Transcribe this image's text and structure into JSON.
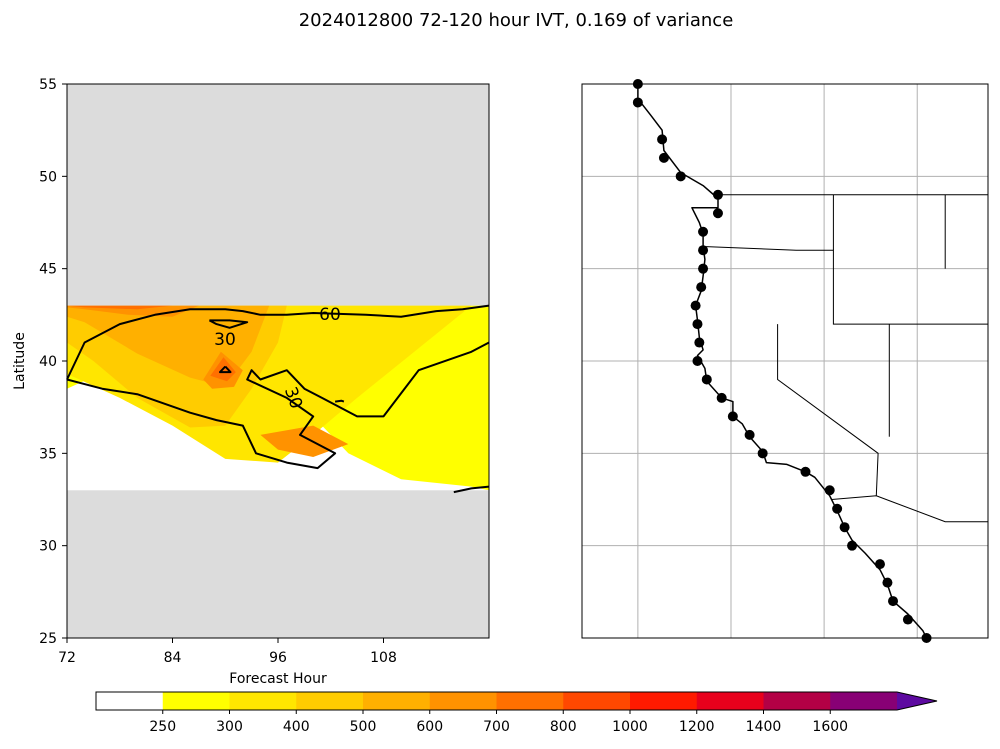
{
  "chart_data": {
    "title": "2024012800 72-120 hour IVT, 0.169 of variance",
    "panels": [
      {
        "type": "contour",
        "xlabel": "Forecast Hour",
        "ylabel": "Latitude",
        "xlim": [
          72,
          120
        ],
        "ylim": [
          25,
          55
        ],
        "xticks": [
          "72",
          "84",
          "96",
          "108"
        ],
        "yticks": [
          "25",
          "30",
          "35",
          "40",
          "45",
          "50",
          "55"
        ],
        "masked_latitudes": [
          [
            25,
            33
          ],
          [
            43,
            55
          ]
        ],
        "contour_labels": [
          "60",
          "30",
          "30"
        ],
        "contour_levels": [
          30,
          60
        ]
      },
      {
        "type": "map",
        "region": "US West Coast",
        "grid": true,
        "points_latitude": [
          55,
          54,
          52,
          51,
          50,
          49,
          48,
          47,
          46,
          45,
          44,
          43,
          42,
          41,
          40,
          39,
          38,
          37,
          36,
          35,
          34,
          33,
          32,
          31,
          30,
          29,
          28,
          27,
          26,
          25
        ],
        "marker": "black-dot"
      }
    ],
    "colorbar": {
      "ticks": [
        "250",
        "300",
        "400",
        "500",
        "600",
        "700",
        "800",
        "1000",
        "1200",
        "1400",
        "1600"
      ],
      "colors": [
        "#ffffff",
        "#ffff00",
        "#ffe600",
        "#ffcc00",
        "#ffb000",
        "#ff9200",
        "#ff7000",
        "#ff4800",
        "#ff1a00",
        "#e8001c",
        "#b30045",
        "#880075",
        "#5d0aa0"
      ],
      "extend": "max"
    }
  }
}
